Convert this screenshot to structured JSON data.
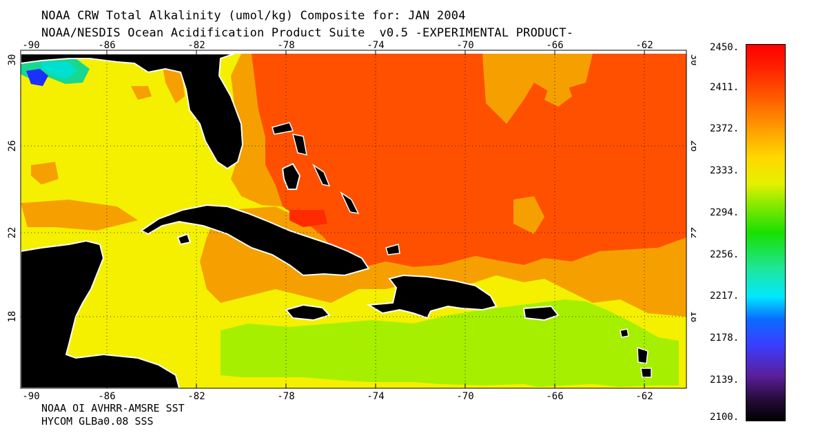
{
  "title_line1": "NOAA CRW Total Alkalinity (umol/kg) Composite for: JAN 2004",
  "title_line2": "NOAA/NESDIS Ocean Acidification Product Suite  v0.5 -EXPERIMENTAL PRODUCT-",
  "footer_line1": "NOAA OI AVHRR-AMSRE SST",
  "footer_line2": "HYCOM GLBa0.08 SSS",
  "map": {
    "lon_ticks": [
      "-90",
      "-86",
      "-82",
      "-78",
      "-74",
      "-70",
      "-66",
      "-62"
    ],
    "lat_ticks": [
      "30",
      "26",
      "22",
      "18"
    ],
    "colors": {
      "land": "#000000",
      "coast": "#ffffff",
      "gulf_yellow": "#f4f000",
      "orange": "#f5a000",
      "red_orange": "#ff5000",
      "red": "#ff2a00",
      "caribbean_green": "#a6ef00",
      "bay_blue": "#1a30ff",
      "bay_cyan": "#00e0d0",
      "bay_green": "#18d890"
    }
  },
  "colorbar": {
    "labels": [
      "2450.",
      "2411.",
      "2372.",
      "2333.",
      "2294.",
      "2256.",
      "2217.",
      "2178.",
      "2139.",
      "2100."
    ]
  }
}
